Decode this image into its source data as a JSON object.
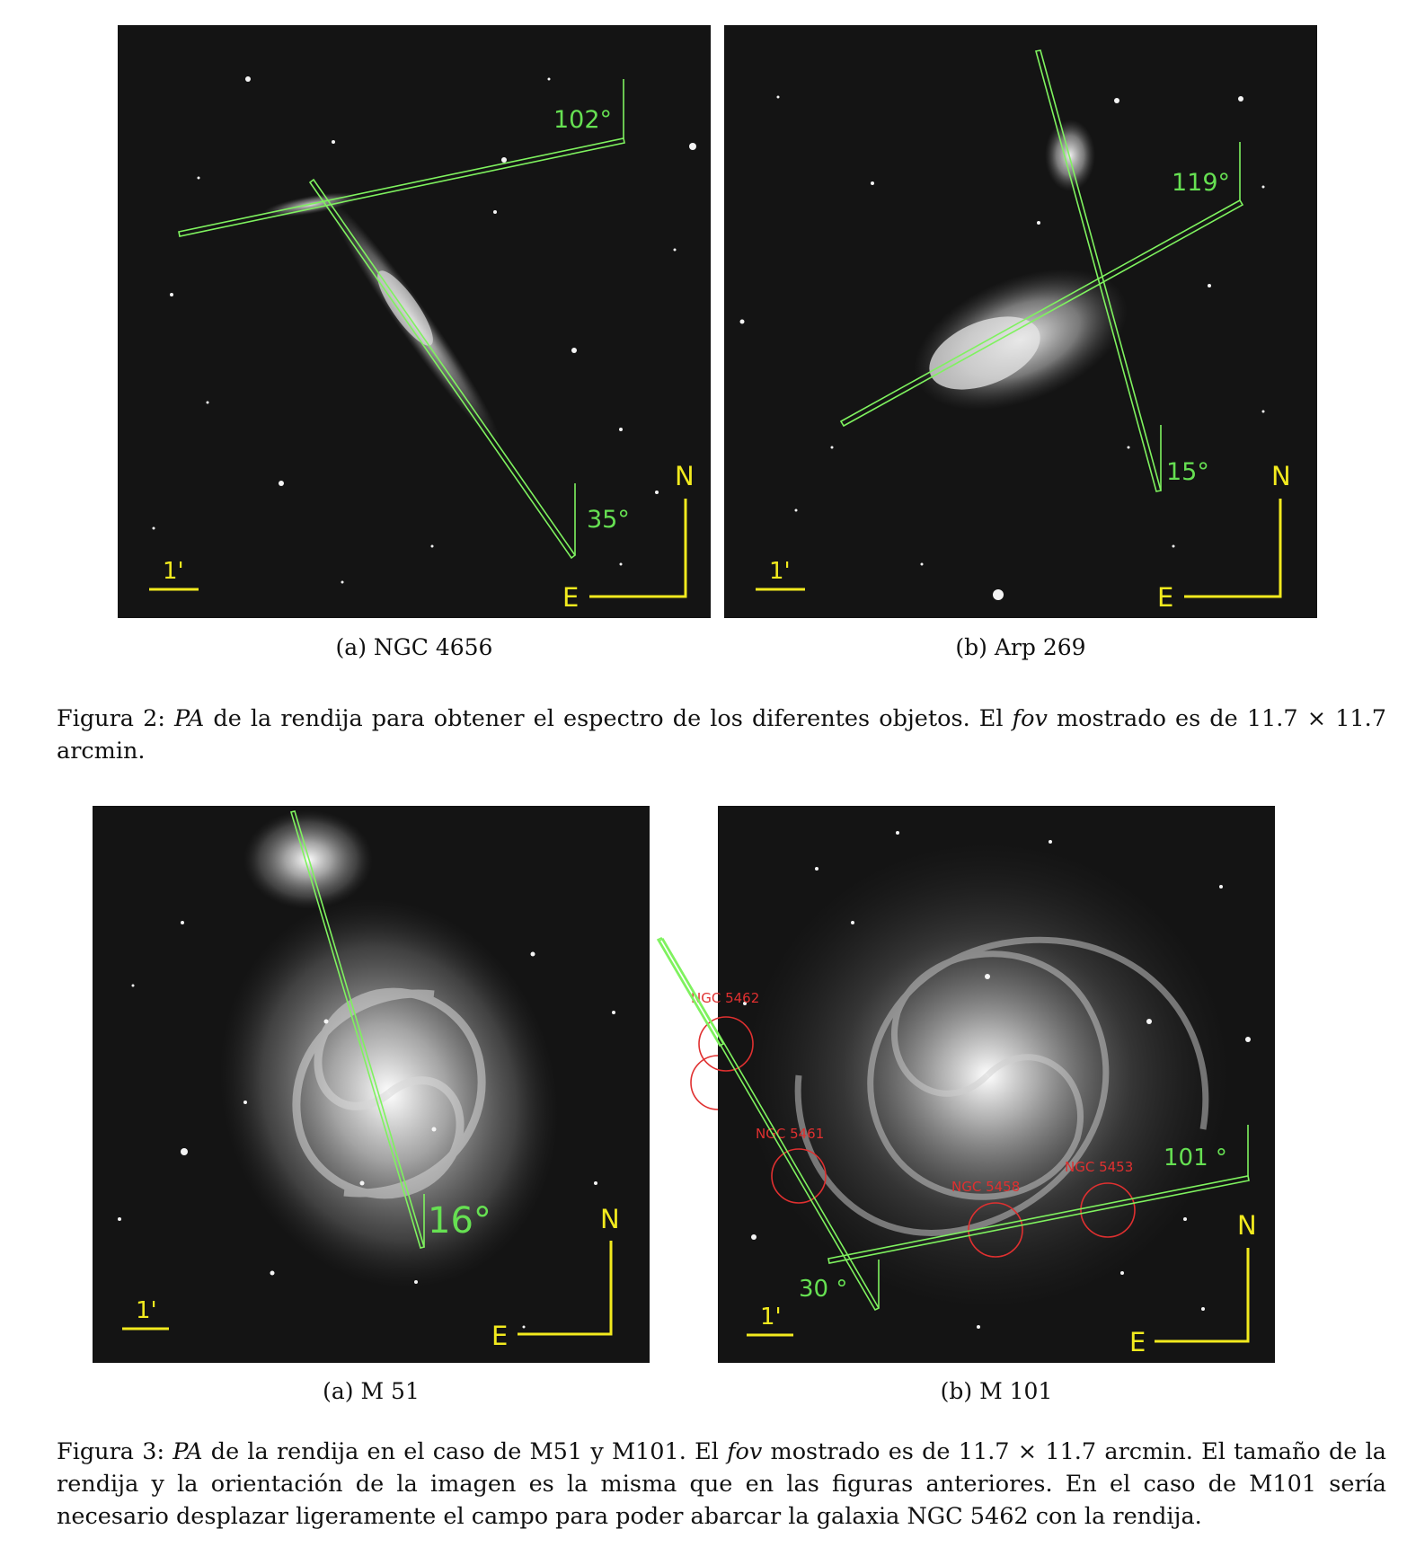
{
  "figure2": {
    "panel_a": {
      "caption": "(a) NGC 4656",
      "angle_1": "102°",
      "angle_2": "35°",
      "north": "N",
      "east": "E",
      "scale": "1'"
    },
    "panel_b": {
      "caption": "(b) Arp 269",
      "angle_1": "119°",
      "angle_2": "15°",
      "north": "N",
      "east": "E",
      "scale": "1'"
    },
    "caption": {
      "label": "Figura 2:",
      "pa": "PA",
      "text_1": " de la rendija para obtener el espectro de los diferentes objetos. El ",
      "fov": "fov",
      "text_2": " mostrado es de 11.7 × 11.7 arcmin."
    }
  },
  "figure3": {
    "panel_a": {
      "caption": "(a) M 51",
      "angle_1": "16°",
      "north": "N",
      "east": "E",
      "scale": "1'"
    },
    "panel_b": {
      "caption": "(b) M 101",
      "angle_1": "101 °",
      "angle_2": "30 °",
      "north": "N",
      "east": "E",
      "scale": "1'",
      "regions": [
        "NGC 5462",
        "NGC 5461",
        "NGC 5458",
        "NGC 5453"
      ]
    },
    "caption": {
      "label": "Figura 3:",
      "pa": "PA",
      "text_1": " de la rendija en el caso de M51 y M101. El ",
      "fov": "fov",
      "text_2": " mostrado es de 11.7 × 11.7 arcmin. El tamaño de la rendija y la orientación de la imagen es la misma que en las figuras anteriores. En el caso de M101 sería necesario desplazar ligeramente el campo para poder abarcar la galaxia NGC 5462 con la rendija."
    }
  }
}
